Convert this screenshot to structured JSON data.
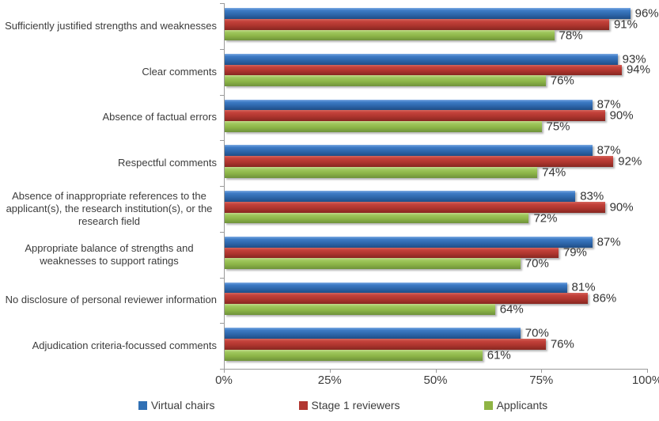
{
  "chart_data": {
    "type": "bar",
    "orientation": "horizontal",
    "title": "",
    "xlabel": "",
    "ylabel": "",
    "categories": [
      "Sufficiently justified strengths and weaknesses",
      "Clear comments",
      "Absence of factual errors",
      "Respectful comments",
      "Absence of inappropriate references to the applicant(s), the research institution(s), or the research field",
      "Appropriate balance of strengths and weaknesses to support ratings",
      "No disclosure of personal reviewer information",
      "Adjudication criteria-focussed comments"
    ],
    "series": [
      {
        "name": "Virtual chairs",
        "legend_color": "#3070B4",
        "gradient": [
          "#7FABE3",
          "#3E7CC6",
          "#2E67AC",
          "#1F4E86"
        ],
        "values": [
          96,
          93,
          87,
          87,
          83,
          87,
          81,
          70
        ]
      },
      {
        "name": "Stage 1 reviewers",
        "legend_color": "#B23731",
        "gradient": [
          "#D5675E",
          "#C4423B",
          "#AE352E",
          "#872721"
        ],
        "values": [
          91,
          94,
          90,
          92,
          90,
          79,
          86,
          76
        ]
      },
      {
        "name": "Applicants",
        "legend_color": "#8FB444",
        "gradient": [
          "#C3DA8D",
          "#9FC75D",
          "#8CB447",
          "#6F923A"
        ],
        "values": [
          78,
          76,
          75,
          74,
          72,
          70,
          64,
          61
        ]
      }
    ],
    "value_label_suffix": "%",
    "x_axis": {
      "min": 0,
      "max": 100,
      "tick_labels": [
        "0%",
        "25%",
        "50%",
        "75%",
        "100%"
      ],
      "tick_values": [
        0,
        25,
        50,
        75,
        100
      ]
    },
    "grid": false,
    "legend_position": "bottom"
  }
}
